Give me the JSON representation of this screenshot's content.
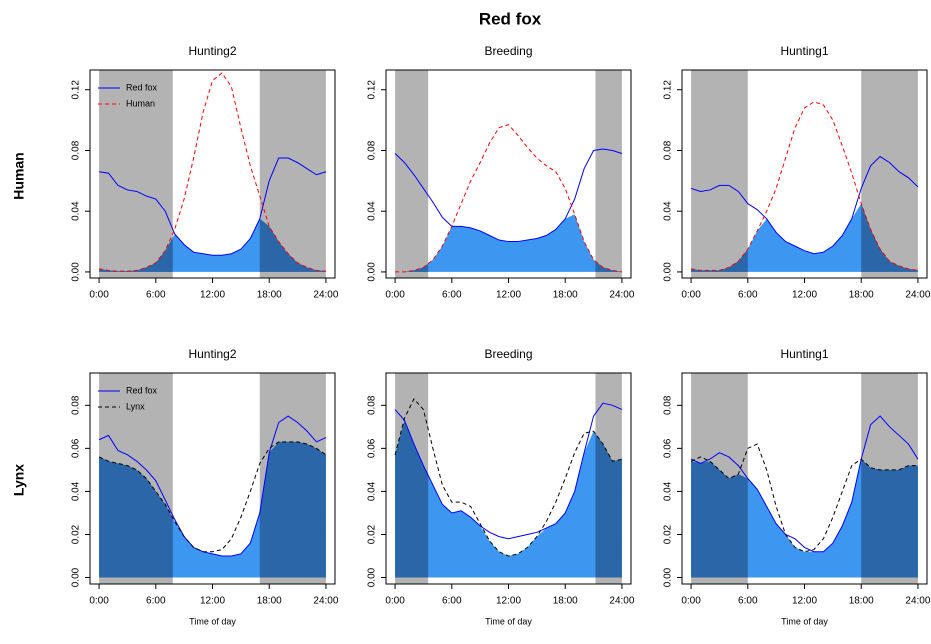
{
  "title": "Red fox",
  "row_labels": [
    "Human",
    "Lynx"
  ],
  "chart_data": [
    {
      "type": "line",
      "title": "Hunting2",
      "legend": true,
      "x": [
        0,
        1,
        2,
        3,
        4,
        5,
        6,
        7,
        8,
        9,
        10,
        11,
        12,
        13,
        14,
        15,
        16,
        17,
        18,
        19,
        20,
        21,
        22,
        23,
        24
      ],
      "xlim": [
        -0.96,
        24.96
      ],
      "xticks": [
        {
          "value": 0,
          "label": "0:00"
        },
        {
          "value": 6,
          "label": "6:00"
        },
        {
          "value": 12,
          "label": "12:00"
        },
        {
          "value": 18,
          "label": "18:00"
        },
        {
          "value": 24,
          "label": "24:00"
        }
      ],
      "ylim": [
        -0.004,
        0.133
      ],
      "yticks": [
        {
          "value": 0,
          "label": "0.00"
        },
        {
          "value": 0.04,
          "label": "0.04"
        },
        {
          "value": 0.08,
          "label": "0.08"
        },
        {
          "value": 0.12,
          "label": "0.12"
        }
      ],
      "shaded_x_ranges": [
        [
          0,
          7.8
        ],
        [
          17,
          24
        ]
      ],
      "shade_color": "#b3b3b3",
      "overlap_color": "#3d96f0",
      "overlap_night_color": "#2a66a8",
      "series": [
        {
          "name": "Red fox",
          "color": "#0000ff",
          "dash": false,
          "values": [
            0.066,
            0.065,
            0.057,
            0.054,
            0.053,
            0.05,
            0.048,
            0.04,
            0.025,
            0.018,
            0.013,
            0.012,
            0.011,
            0.011,
            0.012,
            0.015,
            0.022,
            0.035,
            0.06,
            0.075,
            0.075,
            0.072,
            0.068,
            0.064,
            0.066
          ]
        },
        {
          "name": "Human",
          "color": "#ff0000",
          "dash": true,
          "values": [
            0.002,
            0.001,
            0.0005,
            0.0005,
            0.001,
            0.003,
            0.006,
            0.014,
            0.028,
            0.048,
            0.075,
            0.105,
            0.126,
            0.131,
            0.122,
            0.095,
            0.07,
            0.05,
            0.03,
            0.02,
            0.012,
            0.006,
            0.003,
            0.001,
            0.0005
          ]
        }
      ]
    },
    {
      "type": "line",
      "title": "Breeding",
      "legend": false,
      "x": [
        0,
        1,
        2,
        3,
        4,
        5,
        6,
        7,
        8,
        9,
        10,
        11,
        12,
        13,
        14,
        15,
        16,
        17,
        18,
        19,
        20,
        21,
        22,
        23,
        24
      ],
      "xlim": [
        -0.96,
        24.96
      ],
      "xticks": [
        {
          "value": 0,
          "label": "0:00"
        },
        {
          "value": 6,
          "label": "6:00"
        },
        {
          "value": 12,
          "label": "12:00"
        },
        {
          "value": 18,
          "label": "18:00"
        },
        {
          "value": 24,
          "label": "24:00"
        }
      ],
      "ylim": [
        -0.004,
        0.133
      ],
      "yticks": [
        {
          "value": 0,
          "label": "0.00"
        },
        {
          "value": 0.04,
          "label": "0.04"
        },
        {
          "value": 0.08,
          "label": "0.08"
        },
        {
          "value": 0.12,
          "label": "0.12"
        }
      ],
      "shaded_x_ranges": [
        [
          0,
          3.5
        ],
        [
          21.2,
          24
        ]
      ],
      "shade_color": "#b3b3b3",
      "overlap_color": "#3d96f0",
      "overlap_night_color": "#2a66a8",
      "series": [
        {
          "name": "Red fox",
          "color": "#0000ff",
          "dash": false,
          "values": [
            0.078,
            0.072,
            0.064,
            0.055,
            0.046,
            0.036,
            0.03,
            0.03,
            0.029,
            0.027,
            0.024,
            0.021,
            0.02,
            0.02,
            0.021,
            0.022,
            0.024,
            0.028,
            0.035,
            0.048,
            0.068,
            0.08,
            0.081,
            0.08,
            0.078
          ]
        },
        {
          "name": "Human",
          "color": "#ff0000",
          "dash": true,
          "values": [
            0,
            0,
            0.001,
            0.003,
            0.008,
            0.017,
            0.03,
            0.045,
            0.06,
            0.072,
            0.085,
            0.095,
            0.097,
            0.09,
            0.082,
            0.075,
            0.07,
            0.066,
            0.055,
            0.038,
            0.02,
            0.008,
            0.003,
            0.001,
            0
          ]
        }
      ]
    },
    {
      "type": "line",
      "title": "Hunting1",
      "legend": false,
      "x": [
        0,
        1,
        2,
        3,
        4,
        5,
        6,
        7,
        8,
        9,
        10,
        11,
        12,
        13,
        14,
        15,
        16,
        17,
        18,
        19,
        20,
        21,
        22,
        23,
        24
      ],
      "xlim": [
        -0.96,
        24.96
      ],
      "xticks": [
        {
          "value": 0,
          "label": "0:00"
        },
        {
          "value": 6,
          "label": "6:00"
        },
        {
          "value": 12,
          "label": "12:00"
        },
        {
          "value": 18,
          "label": "18:00"
        },
        {
          "value": 24,
          "label": "24:00"
        }
      ],
      "ylim": [
        -0.004,
        0.133
      ],
      "yticks": [
        {
          "value": 0,
          "label": "0.00"
        },
        {
          "value": 0.04,
          "label": "0.04"
        },
        {
          "value": 0.08,
          "label": "0.08"
        },
        {
          "value": 0.12,
          "label": "0.12"
        }
      ],
      "shaded_x_ranges": [
        [
          0,
          6
        ],
        [
          18,
          24
        ]
      ],
      "shade_color": "#b3b3b3",
      "overlap_color": "#3d96f0",
      "overlap_night_color": "#2a66a8",
      "series": [
        {
          "name": "Red fox",
          "color": "#0000ff",
          "dash": false,
          "values": [
            0.055,
            0.053,
            0.054,
            0.057,
            0.057,
            0.053,
            0.045,
            0.041,
            0.035,
            0.026,
            0.02,
            0.017,
            0.014,
            0.012,
            0.013,
            0.017,
            0.024,
            0.035,
            0.055,
            0.07,
            0.076,
            0.072,
            0.066,
            0.062,
            0.056
          ]
        },
        {
          "name": "Human",
          "color": "#ff0000",
          "dash": true,
          "values": [
            0.002,
            0.001,
            0.001,
            0.001,
            0.003,
            0.007,
            0.015,
            0.027,
            0.04,
            0.055,
            0.075,
            0.095,
            0.108,
            0.112,
            0.11,
            0.1,
            0.083,
            0.065,
            0.045,
            0.028,
            0.015,
            0.007,
            0.004,
            0.002,
            0.001
          ]
        }
      ]
    },
    {
      "type": "line",
      "title": "Hunting2",
      "legend": true,
      "xlabel": "Time of day",
      "x": [
        0,
        1,
        2,
        3,
        4,
        5,
        6,
        7,
        8,
        9,
        10,
        11,
        12,
        13,
        14,
        15,
        16,
        17,
        18,
        19,
        20,
        21,
        22,
        23,
        24
      ],
      "xlim": [
        -0.96,
        24.96
      ],
      "xticks": [
        {
          "value": 0,
          "label": "0:00"
        },
        {
          "value": 6,
          "label": "6:00"
        },
        {
          "value": 12,
          "label": "12:00"
        },
        {
          "value": 18,
          "label": "18:00"
        },
        {
          "value": 24,
          "label": "24:00"
        }
      ],
      "ylim": [
        -0.003,
        0.095
      ],
      "yticks": [
        {
          "value": 0,
          "label": "0.00"
        },
        {
          "value": 0.02,
          "label": "0.02"
        },
        {
          "value": 0.04,
          "label": "0.04"
        },
        {
          "value": 0.06,
          "label": "0.06"
        },
        {
          "value": 0.08,
          "label": "0.08"
        }
      ],
      "shaded_x_ranges": [
        [
          0,
          7.8
        ],
        [
          17,
          24
        ]
      ],
      "shade_color": "#b3b3b3",
      "overlap_color": "#3d96f0",
      "overlap_night_color": "#2a66a8",
      "series": [
        {
          "name": "Red fox",
          "color": "#0000ff",
          "dash": false,
          "values": [
            0.064,
            0.066,
            0.059,
            0.057,
            0.054,
            0.05,
            0.045,
            0.036,
            0.027,
            0.019,
            0.014,
            0.012,
            0.011,
            0.01,
            0.01,
            0.011,
            0.016,
            0.03,
            0.058,
            0.072,
            0.075,
            0.072,
            0.068,
            0.063,
            0.065
          ]
        },
        {
          "name": "Lynx",
          "color": "#000000",
          "dash": true,
          "values": [
            0.056,
            0.054,
            0.053,
            0.052,
            0.05,
            0.046,
            0.04,
            0.034,
            0.026,
            0.019,
            0.014,
            0.012,
            0.012,
            0.013,
            0.018,
            0.028,
            0.04,
            0.053,
            0.06,
            0.063,
            0.063,
            0.063,
            0.062,
            0.06,
            0.057
          ]
        }
      ]
    },
    {
      "type": "line",
      "title": "Breeding",
      "legend": false,
      "xlabel": "Time of day",
      "x": [
        0,
        1,
        2,
        3,
        4,
        5,
        6,
        7,
        8,
        9,
        10,
        11,
        12,
        13,
        14,
        15,
        16,
        17,
        18,
        19,
        20,
        21,
        22,
        23,
        24
      ],
      "xlim": [
        -0.96,
        24.96
      ],
      "xticks": [
        {
          "value": 0,
          "label": "0:00"
        },
        {
          "value": 6,
          "label": "6:00"
        },
        {
          "value": 12,
          "label": "12:00"
        },
        {
          "value": 18,
          "label": "18:00"
        },
        {
          "value": 24,
          "label": "24:00"
        }
      ],
      "ylim": [
        -0.003,
        0.095
      ],
      "yticks": [
        {
          "value": 0,
          "label": "0.00"
        },
        {
          "value": 0.02,
          "label": "0.02"
        },
        {
          "value": 0.04,
          "label": "0.04"
        },
        {
          "value": 0.06,
          "label": "0.06"
        },
        {
          "value": 0.08,
          "label": "0.08"
        }
      ],
      "shaded_x_ranges": [
        [
          0,
          3.5
        ],
        [
          21.2,
          24
        ]
      ],
      "shade_color": "#b3b3b3",
      "overlap_color": "#3d96f0",
      "overlap_night_color": "#2a66a8",
      "series": [
        {
          "name": "Red fox",
          "color": "#0000ff",
          "dash": false,
          "values": [
            0.078,
            0.073,
            0.062,
            0.052,
            0.043,
            0.034,
            0.03,
            0.031,
            0.028,
            0.024,
            0.021,
            0.019,
            0.018,
            0.019,
            0.02,
            0.021,
            0.023,
            0.025,
            0.03,
            0.04,
            0.058,
            0.075,
            0.081,
            0.08,
            0.078
          ]
        },
        {
          "name": "Lynx",
          "color": "#000000",
          "dash": true,
          "values": [
            0.057,
            0.074,
            0.083,
            0.078,
            0.06,
            0.043,
            0.035,
            0.035,
            0.033,
            0.025,
            0.017,
            0.012,
            0.01,
            0.011,
            0.014,
            0.019,
            0.026,
            0.035,
            0.046,
            0.058,
            0.067,
            0.068,
            0.062,
            0.054,
            0.055
          ]
        }
      ]
    },
    {
      "type": "line",
      "title": "Hunting1",
      "legend": false,
      "xlabel": "Time of day",
      "x": [
        0,
        1,
        2,
        3,
        4,
        5,
        6,
        7,
        8,
        9,
        10,
        11,
        12,
        13,
        14,
        15,
        16,
        17,
        18,
        19,
        20,
        21,
        22,
        23,
        24
      ],
      "xlim": [
        -0.96,
        24.96
      ],
      "xticks": [
        {
          "value": 0,
          "label": "0:00"
        },
        {
          "value": 6,
          "label": "6:00"
        },
        {
          "value": 12,
          "label": "12:00"
        },
        {
          "value": 18,
          "label": "18:00"
        },
        {
          "value": 24,
          "label": "24:00"
        }
      ],
      "ylim": [
        -0.003,
        0.095
      ],
      "yticks": [
        {
          "value": 0,
          "label": "0.00"
        },
        {
          "value": 0.02,
          "label": "0.02"
        },
        {
          "value": 0.04,
          "label": "0.04"
        },
        {
          "value": 0.06,
          "label": "0.06"
        },
        {
          "value": 0.08,
          "label": "0.08"
        }
      ],
      "shaded_x_ranges": [
        [
          0,
          6
        ],
        [
          18,
          24
        ]
      ],
      "shade_color": "#b3b3b3",
      "overlap_color": "#3d96f0",
      "overlap_night_color": "#2a66a8",
      "series": [
        {
          "name": "Red fox",
          "color": "#0000ff",
          "dash": false,
          "values": [
            0.055,
            0.053,
            0.055,
            0.058,
            0.056,
            0.052,
            0.046,
            0.041,
            0.033,
            0.025,
            0.02,
            0.018,
            0.014,
            0.012,
            0.012,
            0.016,
            0.024,
            0.035,
            0.055,
            0.071,
            0.075,
            0.07,
            0.066,
            0.062,
            0.055
          ]
        },
        {
          "name": "Lynx",
          "color": "#000000",
          "dash": true,
          "values": [
            0.054,
            0.056,
            0.054,
            0.05,
            0.046,
            0.048,
            0.06,
            0.062,
            0.05,
            0.033,
            0.02,
            0.014,
            0.012,
            0.013,
            0.018,
            0.028,
            0.04,
            0.052,
            0.055,
            0.051,
            0.05,
            0.05,
            0.05,
            0.052,
            0.052
          ]
        }
      ]
    }
  ]
}
